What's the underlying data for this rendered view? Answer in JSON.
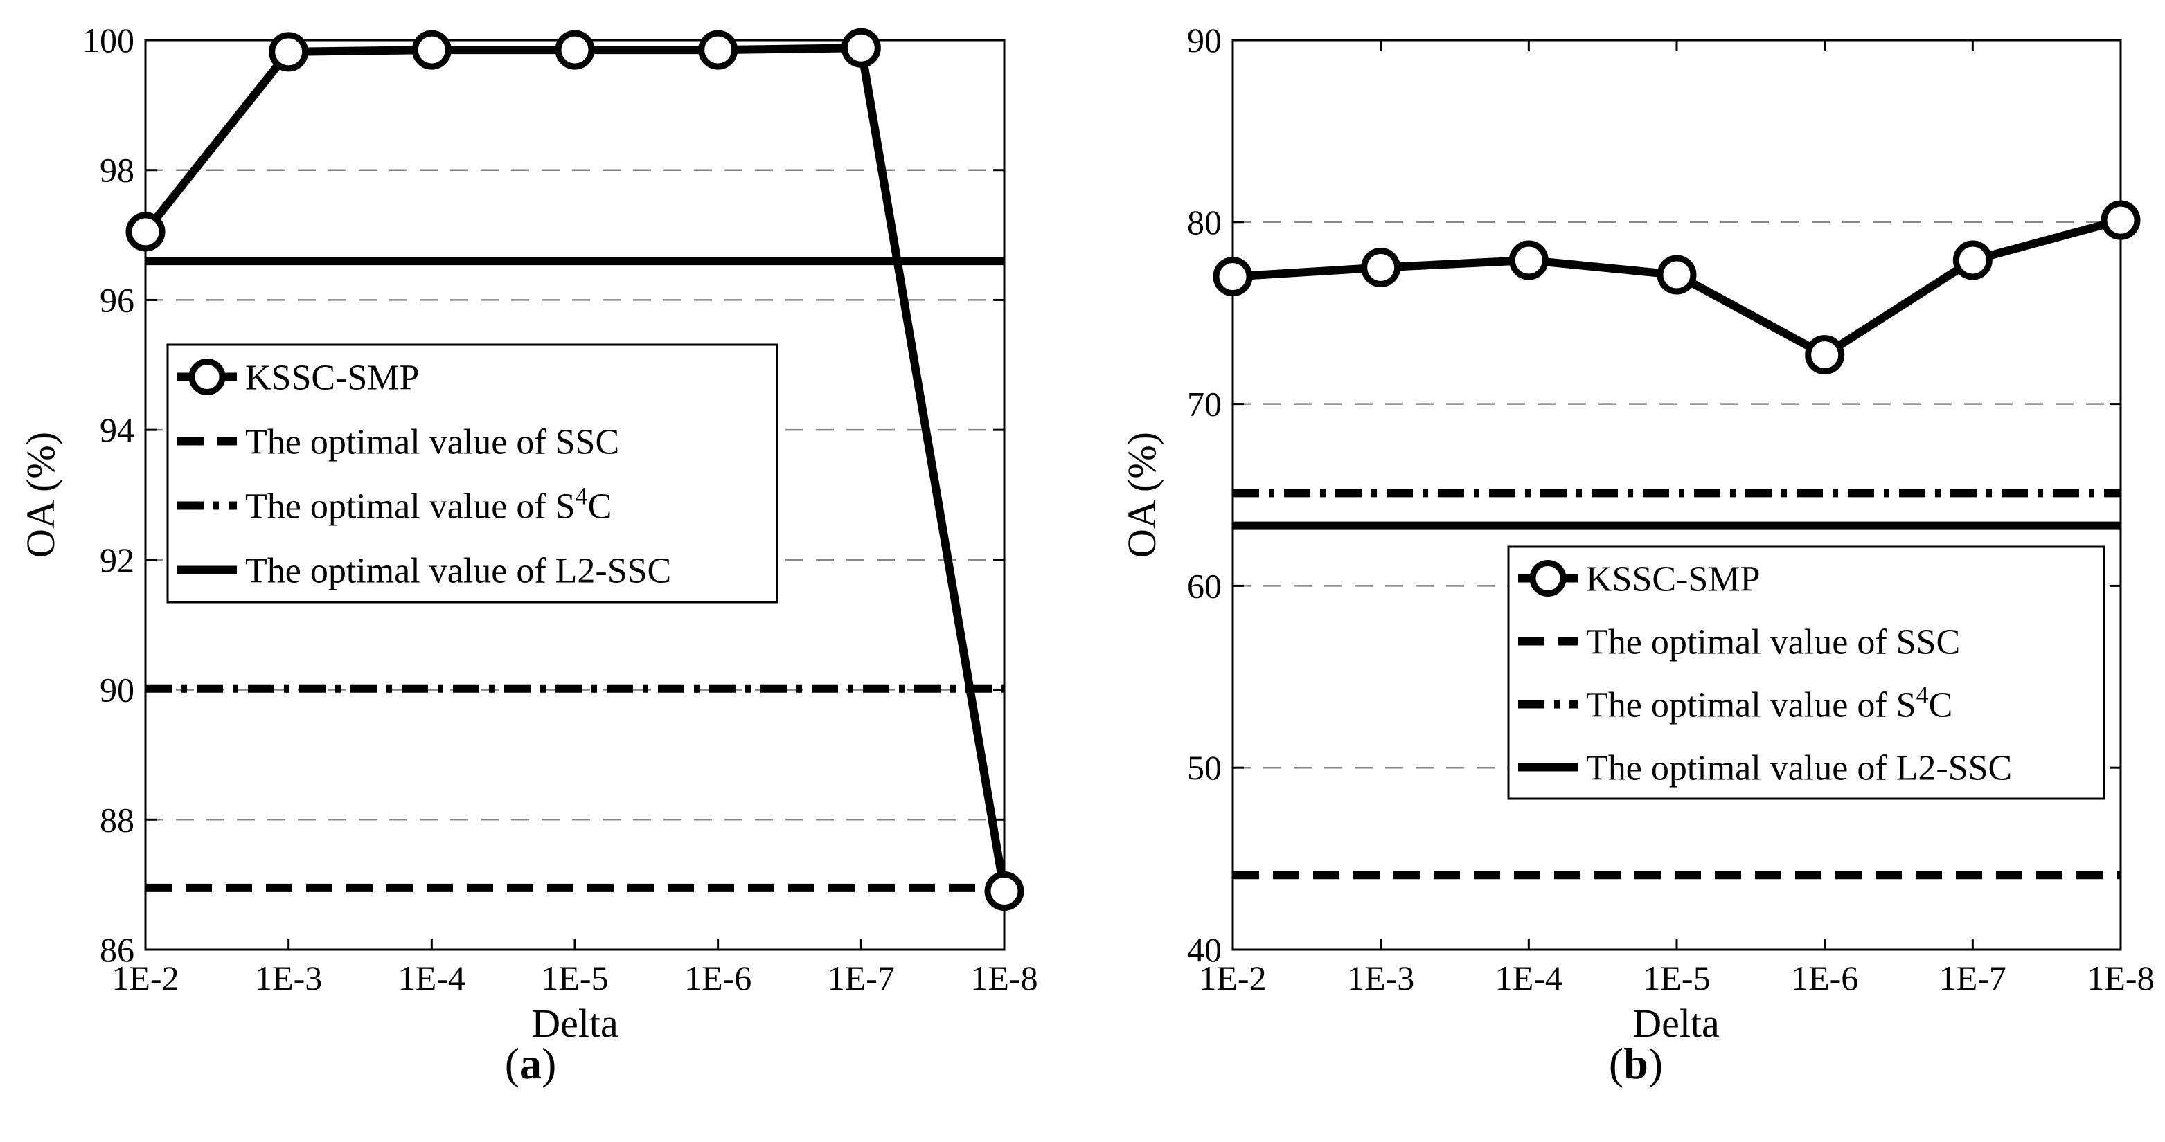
{
  "chart_data": [
    {
      "type": "line",
      "caption": "a",
      "xlabel": "Delta",
      "ylabel": "OA (%)",
      "categories": [
        "1E-2",
        "1E-3",
        "1E-4",
        "1E-5",
        "1E-6",
        "1E-7",
        "1E-8"
      ],
      "ylim": [
        86,
        100
      ],
      "yticks": [
        86,
        88,
        90,
        92,
        94,
        96,
        98,
        100
      ],
      "grid": "horizontal-dashed",
      "legend_position": "middle-left",
      "series": [
        {
          "name": "KSSC-SMP",
          "style": "solid-circle-markers",
          "values": [
            97.05,
            99.82,
            99.85,
            99.85,
            99.85,
            99.88,
            86.9
          ]
        },
        {
          "name": "The optimal value of SSC",
          "style": "dashed",
          "values": [
            86.95,
            86.95,
            86.95,
            86.95,
            86.95,
            86.95,
            86.95
          ]
        },
        {
          "name": "The optimal value of S⁴C",
          "style": "dash-dot",
          "values": [
            90.02,
            90.02,
            90.02,
            90.02,
            90.02,
            90.02,
            90.02
          ]
        },
        {
          "name": "The optimal value of L2-SSC",
          "style": "solid",
          "values": [
            96.6,
            96.6,
            96.6,
            96.6,
            96.6,
            96.6,
            96.6
          ]
        }
      ]
    },
    {
      "type": "line",
      "caption": "b",
      "xlabel": "Delta",
      "ylabel": "OA (%)",
      "categories": [
        "1E-2",
        "1E-3",
        "1E-4",
        "1E-5",
        "1E-6",
        "1E-7",
        "1E-8"
      ],
      "ylim": [
        40,
        90
      ],
      "yticks": [
        40,
        50,
        60,
        70,
        80,
        90
      ],
      "grid": "horizontal-dashed",
      "legend_position": "bottom-right",
      "series": [
        {
          "name": "KSSC-SMP",
          "style": "solid-circle-markers",
          "values": [
            77.0,
            77.5,
            77.9,
            77.1,
            72.7,
            77.9,
            80.1
          ]
        },
        {
          "name": "The optimal value of SSC",
          "style": "dashed",
          "values": [
            44.1,
            44.1,
            44.1,
            44.1,
            44.1,
            44.1,
            44.1
          ]
        },
        {
          "name": "The optimal value of S⁴C",
          "style": "dash-dot",
          "values": [
            65.1,
            65.1,
            65.1,
            65.1,
            65.1,
            65.1,
            65.1
          ]
        },
        {
          "name": "The optimal value of L2-SSC",
          "style": "solid",
          "values": [
            63.3,
            63.3,
            63.3,
            63.3,
            63.3,
            63.3,
            63.3
          ]
        }
      ]
    }
  ],
  "legend_label_parts": {
    "prefix": "The optimal value of S",
    "sup": "4",
    "suffix": "C"
  }
}
